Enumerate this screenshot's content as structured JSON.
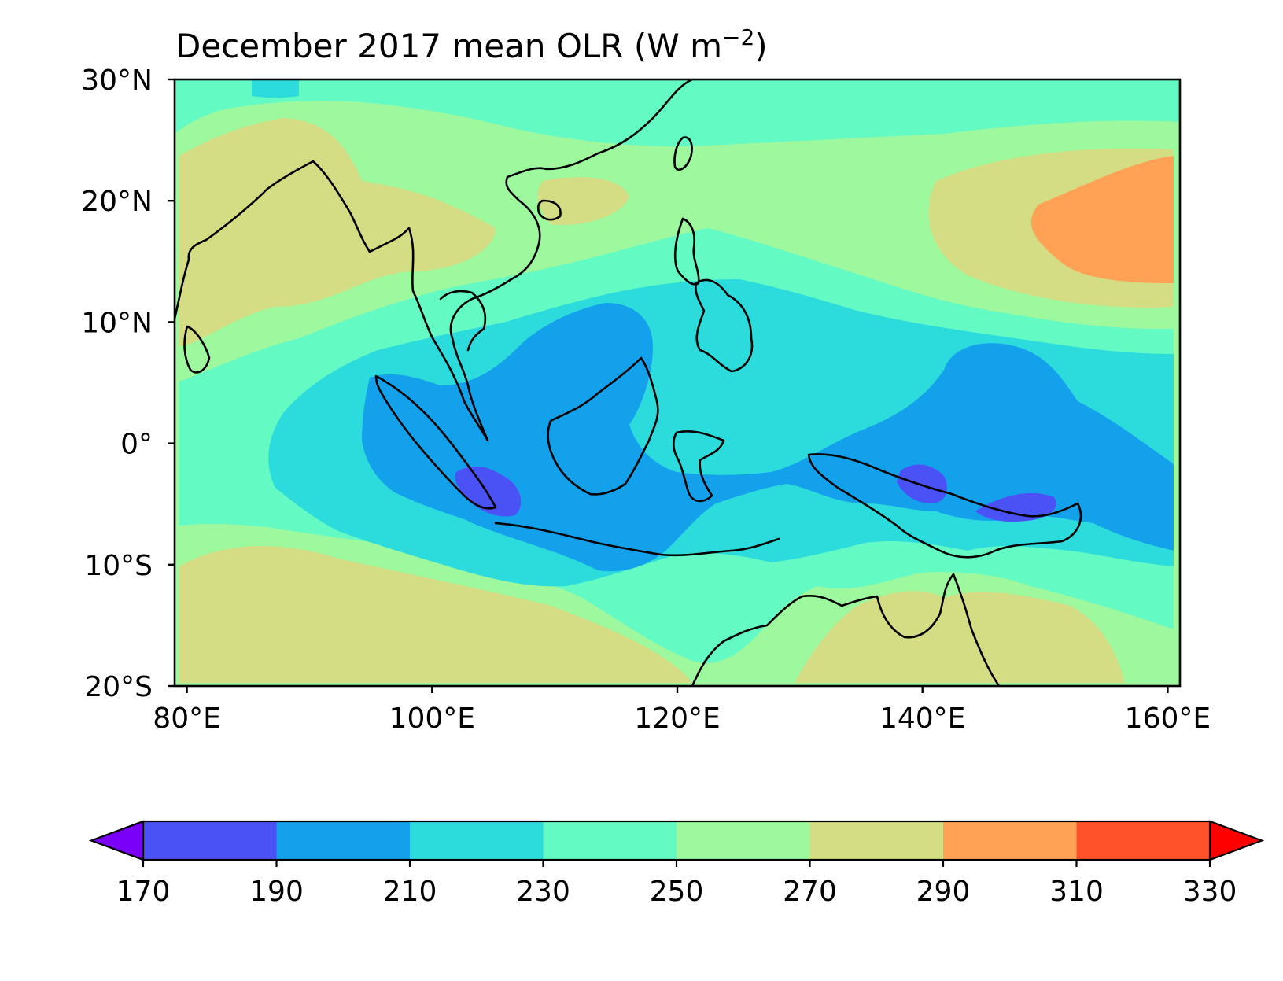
{
  "chart_data": {
    "type": "contour-map",
    "title": "December 2017 mean OLR (W m",
    "title_units_superscript": "−2",
    "title_close": ")",
    "projection": "PlateCarree",
    "lon_range": [
      79,
      161
    ],
    "lat_range": [
      -20,
      30
    ],
    "lon_ticks": [
      {
        "value": 80,
        "label": "80°E"
      },
      {
        "value": 100,
        "label": "100°E"
      },
      {
        "value": 120,
        "label": "120°E"
      },
      {
        "value": 140,
        "label": "140°E"
      },
      {
        "value": 160,
        "label": "160°E"
      }
    ],
    "lat_ticks": [
      {
        "value": 30,
        "label": "30°N"
      },
      {
        "value": 20,
        "label": "20°N"
      },
      {
        "value": 10,
        "label": "10°N"
      },
      {
        "value": 0,
        "label": "0°"
      },
      {
        "value": -10,
        "label": "10°S"
      },
      {
        "value": -20,
        "label": "20°S"
      }
    ],
    "colorbar": {
      "orientation": "horizontal",
      "extend": "both",
      "levels": [
        170,
        190,
        210,
        230,
        250,
        270,
        290,
        310,
        330
      ],
      "tick_labels": [
        "170",
        "190",
        "210",
        "230",
        "250",
        "270",
        "290",
        "310",
        "330"
      ],
      "under_color": "#7a00f8",
      "over_color": "#ff0000",
      "bin_colors": [
        "#4a52f6",
        "#14a1ec",
        "#2cdcdc",
        "#64fac4",
        "#9ef89e",
        "#d4dc84",
        "#ffa256",
        "#ff522a"
      ]
    },
    "field_regions": [
      {
        "level_bin": "250-270",
        "desc": "background"
      },
      {
        "level_bin": "270-290",
        "desc": "Arabian Sea / India west"
      },
      {
        "level_bin": "270-290",
        "desc": "South China / Indochina north"
      },
      {
        "level_bin": "270-290",
        "desc": "NW Pacific"
      },
      {
        "level_bin": "290-310",
        "desc": "NW Pacific maximum"
      },
      {
        "level_bin": "270-290",
        "desc": "South Indian Ocean"
      },
      {
        "level_bin": "270-290",
        "desc": "Northern Australia"
      },
      {
        "level_bin": "230-250",
        "desc": "north band"
      },
      {
        "level_bin": "230-250",
        "desc": "convective belt"
      },
      {
        "level_bin": "210-230",
        "desc": "convective belt"
      },
      {
        "level_bin": "190-210",
        "desc": "Sumatra-Java-Borneo"
      },
      {
        "level_bin": "190-210",
        "desc": "Philippine Sea / New Guinea"
      },
      {
        "level_bin": "170-190",
        "desc": "South Sumatra minimum"
      },
      {
        "level_bin": "170-190",
        "desc": "New Guinea minimum"
      },
      {
        "level_bin": "170-190",
        "desc": "New Britain minimum"
      }
    ]
  }
}
